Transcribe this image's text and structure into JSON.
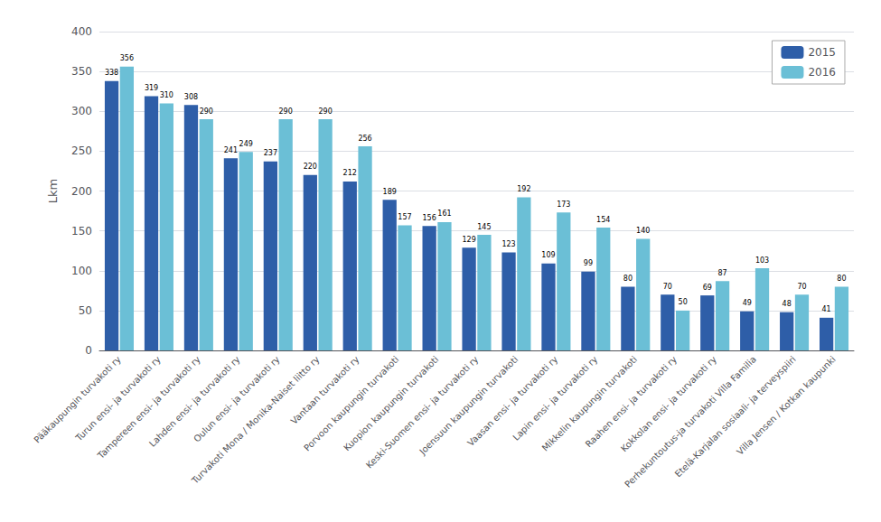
{
  "chart_data": {
    "type": "bar",
    "ylabel": "Lkm",
    "categories": [
      "Pääkaupungin turvakoti ry",
      "Turun ensi- ja turvakoti ry",
      "Tampereen ensi- ja turvakoti ry",
      "Lahden ensi- ja turvakoti ry",
      "Oulun ensi- ja turvakoti ry",
      "Turvakoti Mona / Monika-Naiset liitto ry",
      "Vantaan turvakoti ry",
      "Porvoon kaupungin turvakoti",
      "Kuopion kaupungin turvakoti",
      "Keski-Suomen ensi- ja turvakoti ry",
      "Joensuun kaupungin turvakoti",
      "Vaasan ensi- ja turvakoti ry",
      "Lapin ensi- ja turvakoti ry",
      "Mikkelin kaupungin turvakoti",
      "Raahen ensi- ja turvakoti ry",
      "Kokkolan ensi- ja turvakoti ry",
      "Perhekuntoutus-ja turvakoti Villa Familia",
      "Etelä-Karjalan sosiaali- ja terveyspiiri",
      "Villa Jensen / Kotkan kaupunki"
    ],
    "series": [
      {
        "name": "2015",
        "color": "#2E5EA8",
        "values": [
          338,
          319,
          308,
          241,
          237,
          220,
          212,
          189,
          156,
          129,
          123,
          109,
          99,
          80,
          70,
          69,
          49,
          48,
          41
        ]
      },
      {
        "name": "2016",
        "color": "#6BBFD6",
        "values": [
          356,
          310,
          290,
          249,
          290,
          290,
          256,
          157,
          161,
          145,
          192,
          173,
          154,
          140,
          50,
          87,
          103,
          70,
          80
        ]
      }
    ],
    "ylim": [
      0,
      400
    ],
    "yticks": [
      0,
      50,
      100,
      150,
      200,
      250,
      300,
      350,
      400
    ],
    "grid": true,
    "legend": "upper right",
    "data_labels": true
  }
}
